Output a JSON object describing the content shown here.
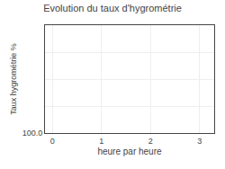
{
  "chart_data": {
    "type": "line",
    "title": "Evolution du taux d'hygrométrie",
    "xlabel": "heure par heure",
    "ylabel": "Taux hygrométrie %",
    "xlim": [
      -0.15,
      3.3
    ],
    "xticks": [
      0,
      1,
      2,
      3
    ],
    "ylim": [
      100.0,
      160.0
    ],
    "yticks": [
      {
        "value": 100.0,
        "label": "100.0"
      },
      {
        "value": 115.0,
        "label": null
      },
      {
        "value": 130.0,
        "label": null
      },
      {
        "value": 145.0,
        "label": null
      },
      {
        "value": 160.0,
        "label": null
      }
    ],
    "grid": true
  }
}
